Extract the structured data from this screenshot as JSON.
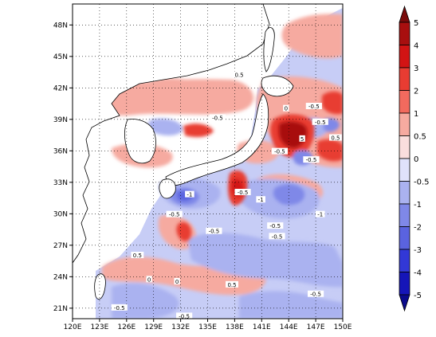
{
  "chart_data": {
    "type": "heatmap",
    "projection": "lat-lon map (filled contours)",
    "grid": "dotted graticule",
    "xaxis": {
      "range": [
        120,
        150
      ],
      "ticks": [
        120,
        123,
        126,
        129,
        132,
        135,
        138,
        141,
        144,
        147,
        150
      ],
      "tick_labels": [
        "120E",
        "123E",
        "126E",
        "129E",
        "132E",
        "135E",
        "138E",
        "141E",
        "144E",
        "147E",
        "150E"
      ]
    },
    "yaxis": {
      "range": [
        20,
        50
      ],
      "ticks": [
        21,
        24,
        27,
        30,
        33,
        36,
        39,
        42,
        45,
        48
      ],
      "tick_labels": [
        "21N",
        "24N",
        "27N",
        "30N",
        "33N",
        "36N",
        "39N",
        "42N",
        "45N",
        "48N"
      ]
    },
    "colorbar": {
      "placement": "right",
      "levels": [
        5,
        4,
        3,
        2,
        1,
        0.5,
        0,
        -0.5,
        -1,
        -2,
        -3,
        -4,
        -5
      ],
      "labels": [
        "5",
        "4",
        "3",
        "2",
        "1",
        "0.5",
        "0",
        "-0.5",
        "-1",
        "-2",
        "-3",
        "-4",
        "-5"
      ],
      "colors": [
        "#7a0b0b",
        "#a80f0f",
        "#d21414",
        "#e83c32",
        "#f26a5e",
        "#f6aaa0",
        "#fadedd",
        "#dfe2fb",
        "#aab2f0",
        "#7f88e8",
        "#5a63df",
        "#3238d6",
        "#1515b8",
        "#0a0a8c"
      ]
    },
    "contour_labels": [
      {
        "lon": 138.5,
        "lat": 43.2,
        "text": "0.5"
      },
      {
        "lon": 136.1,
        "lat": 39.1,
        "text": "-0.5"
      },
      {
        "lon": 143.7,
        "lat": 40.0,
        "text": "0"
      },
      {
        "lon": 145.5,
        "lat": 37.1,
        "text": "5"
      },
      {
        "lon": 146.8,
        "lat": 40.2,
        "text": "-0.5"
      },
      {
        "lon": 147.5,
        "lat": 38.7,
        "text": "-0.5"
      },
      {
        "lon": 149.2,
        "lat": 37.2,
        "text": "0.5"
      },
      {
        "lon": 143.0,
        "lat": 35.9,
        "text": "-0.5"
      },
      {
        "lon": 146.5,
        "lat": 35.1,
        "text": "-0.5"
      },
      {
        "lon": 133.0,
        "lat": 31.8,
        "text": "-1"
      },
      {
        "lon": 138.9,
        "lat": 32.0,
        "text": "-0.5"
      },
      {
        "lon": 140.9,
        "lat": 31.3,
        "text": "-1"
      },
      {
        "lon": 131.3,
        "lat": 29.9,
        "text": "-0.5"
      },
      {
        "lon": 147.5,
        "lat": 29.9,
        "text": "-1"
      },
      {
        "lon": 135.7,
        "lat": 28.3,
        "text": "-0.5"
      },
      {
        "lon": 142.5,
        "lat": 28.8,
        "text": "-0.5"
      },
      {
        "lon": 142.7,
        "lat": 27.8,
        "text": "-0.5"
      },
      {
        "lon": 127.2,
        "lat": 26.0,
        "text": "0.5"
      },
      {
        "lon": 128.5,
        "lat": 23.7,
        "text": "0"
      },
      {
        "lon": 131.6,
        "lat": 23.5,
        "text": "0"
      },
      {
        "lon": 137.7,
        "lat": 23.2,
        "text": "0.5"
      },
      {
        "lon": 147.0,
        "lat": 22.3,
        "text": "-0.5"
      },
      {
        "lon": 125.2,
        "lat": 21.0,
        "text": "-0.5"
      },
      {
        "lon": 132.4,
        "lat": 20.2,
        "text": "-0.5"
      }
    ]
  }
}
